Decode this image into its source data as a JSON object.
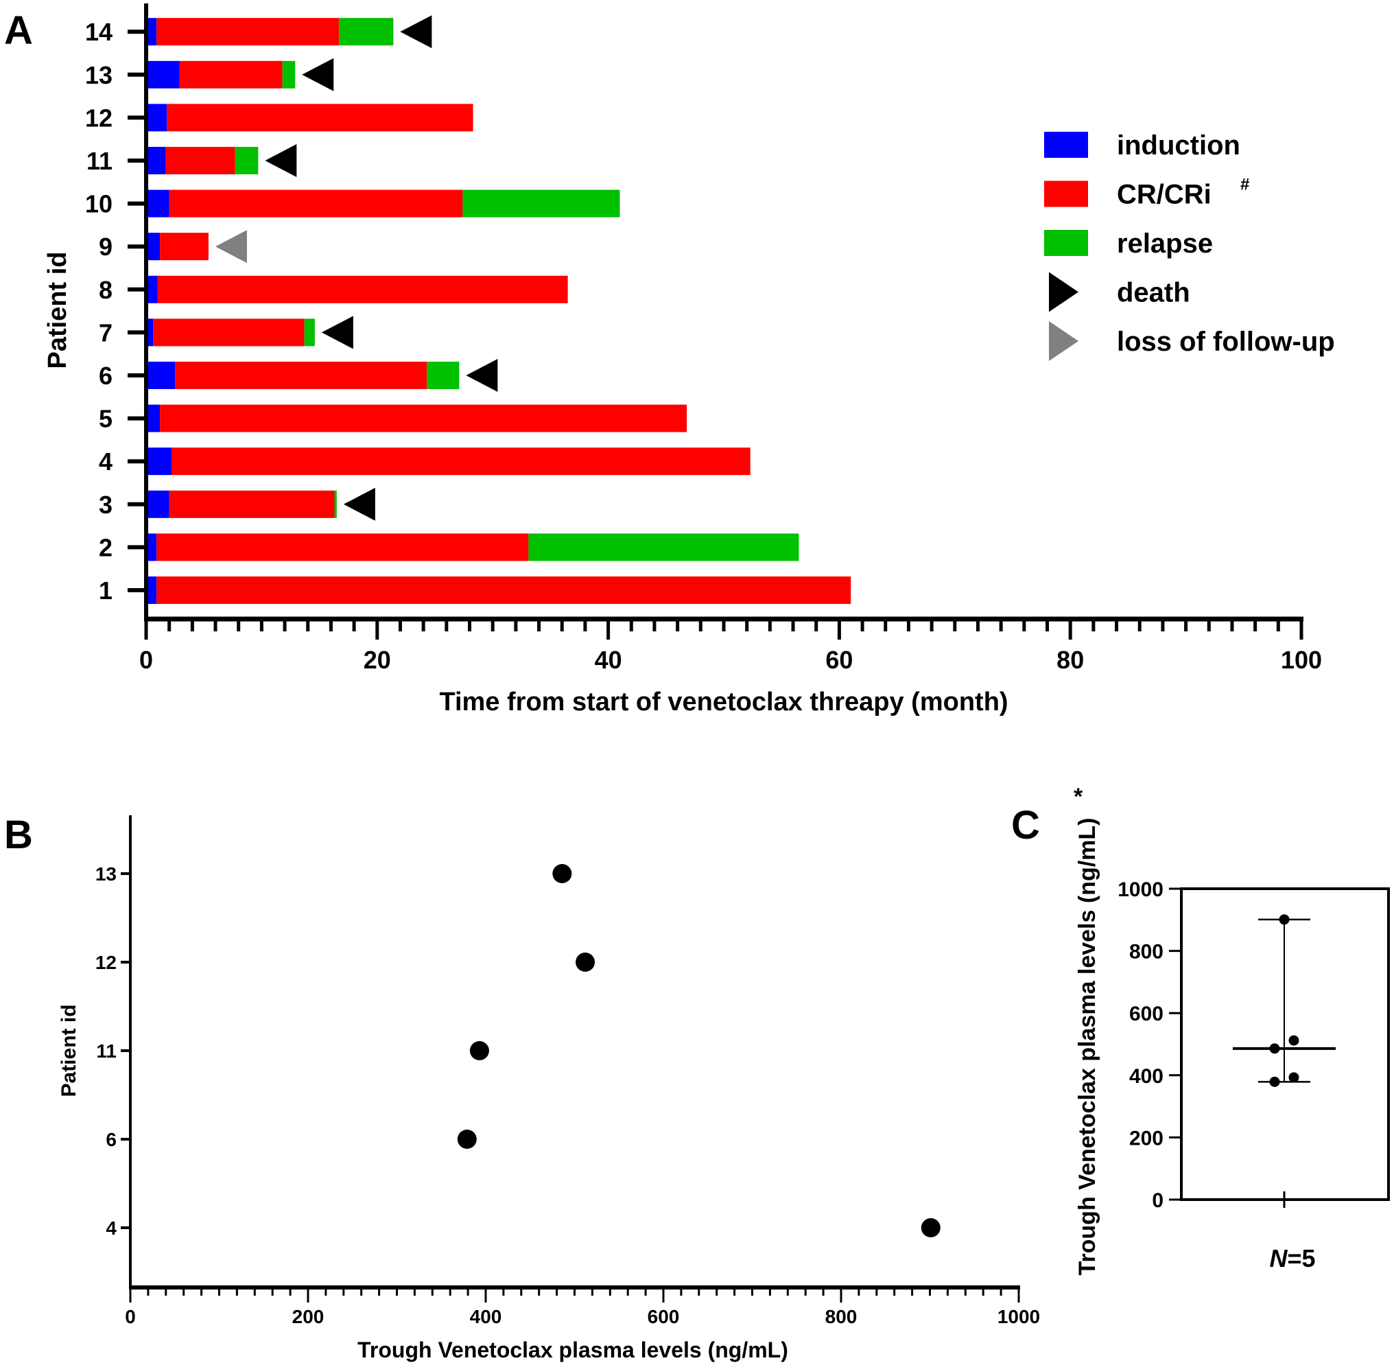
{
  "chart_data": [
    {
      "panel": "A",
      "type": "bar",
      "orientation": "horizontal-stacked",
      "title": "",
      "xlabel": "Time from start of venetoclax threapy (month)",
      "ylabel": "Patient id",
      "xlim": [
        0,
        100
      ],
      "x_major_ticks": [
        0,
        20,
        40,
        60,
        80,
        100
      ],
      "x_tick_labels": [
        "0",
        "20",
        "40",
        "60",
        "80",
        "100"
      ],
      "x_minor_step": 2,
      "grid": false,
      "legend_position": "right",
      "legend": [
        {
          "label": "induction",
          "kind": "swatch",
          "color": "#0000ff"
        },
        {
          "label": "CR/CRi",
          "sup": "#",
          "kind": "swatch",
          "color": "#ff0000"
        },
        {
          "label": "relapse",
          "kind": "swatch",
          "color": "#00c000"
        },
        {
          "label": "death",
          "kind": "triangle",
          "color": "#000000"
        },
        {
          "label": "loss of follow-up",
          "kind": "triangle",
          "color": "#808080"
        }
      ],
      "categories": [
        "1",
        "2",
        "3",
        "4",
        "5",
        "6",
        "7",
        "8",
        "9",
        "10",
        "11",
        "12",
        "13",
        "14"
      ],
      "series": [
        {
          "name": "induction",
          "color": "#0000ff",
          "values": [
            0.9,
            0.9,
            2.0,
            2.2,
            1.2,
            2.5,
            0.6,
            1.0,
            1.2,
            2.0,
            1.7,
            1.8,
            2.9,
            0.9
          ]
        },
        {
          "name": "CR/CRi",
          "color": "#ff0000",
          "values": [
            60.1,
            32.2,
            14.3,
            50.1,
            45.6,
            21.8,
            13.1,
            35.5,
            4.2,
            25.4,
            6.0,
            26.5,
            8.9,
            15.8
          ]
        },
        {
          "name": "relapse",
          "color": "#00c000",
          "values": [
            0,
            23.4,
            0.2,
            0,
            0,
            2.8,
            0.9,
            0,
            0,
            13.6,
            2.0,
            0,
            1.1,
            4.7
          ]
        }
      ],
      "end_markers": [
        {
          "patient": "3",
          "event": "death",
          "color": "#000000"
        },
        {
          "patient": "6",
          "event": "death",
          "color": "#000000"
        },
        {
          "patient": "7",
          "event": "death",
          "color": "#000000"
        },
        {
          "patient": "9",
          "event": "loss of follow-up",
          "color": "#808080"
        },
        {
          "patient": "11",
          "event": "death",
          "color": "#000000"
        },
        {
          "patient": "13",
          "event": "death",
          "color": "#000000"
        },
        {
          "patient": "14",
          "event": "death",
          "color": "#000000"
        }
      ]
    },
    {
      "panel": "B",
      "type": "scatter",
      "title": "",
      "xlabel": "Trough Venetoclax plasma levels (ng/mL)",
      "ylabel": "Patient id",
      "xlim": [
        0,
        1000
      ],
      "x_major_ticks": [
        0,
        200,
        400,
        600,
        800,
        1000
      ],
      "x_tick_labels": [
        "0",
        "200",
        "400",
        "600",
        "800",
        "1000"
      ],
      "x_minor_step": 20,
      "y_categories": [
        "4",
        "6",
        "11",
        "12",
        "13"
      ],
      "grid": false,
      "points": [
        {
          "patient": "13",
          "value": 486
        },
        {
          "patient": "12",
          "value": 512
        },
        {
          "patient": "11",
          "value": 393
        },
        {
          "patient": "6",
          "value": 379
        },
        {
          "patient": "4",
          "value": 901
        }
      ]
    },
    {
      "panel": "C",
      "type": "scatter",
      "subtype": "dot-plot with median and range",
      "title": "",
      "xlabel": "N=5",
      "ylabel": "Trough Venetoclax plasma levels (ng/mL)",
      "ylabel_sup": "*",
      "ylim": [
        0,
        1000
      ],
      "y_ticks": [
        0,
        200,
        400,
        600,
        800,
        1000
      ],
      "y_tick_labels": [
        "0",
        "200",
        "400",
        "600",
        "800",
        "1000"
      ],
      "grid": false,
      "values": [
        901,
        512,
        486,
        393,
        379
      ],
      "median": 486,
      "min": 379,
      "max": 901
    }
  ],
  "labels": {
    "panel_a": "A",
    "panel_b": "B",
    "panel_c": "C",
    "n_label_italic": "N",
    "n_label_rest": "=5"
  }
}
